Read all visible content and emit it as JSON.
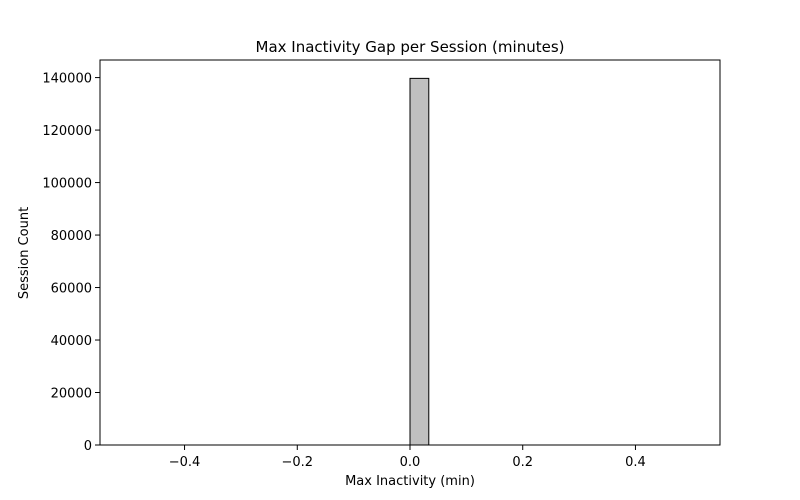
{
  "chart_data": {
    "type": "bar",
    "title": "Max Inactivity Gap per Session (minutes)",
    "xlabel": "Max Inactivity (min)",
    "ylabel": "Session Count",
    "xlim": [
      -0.55,
      0.55
    ],
    "ylim": [
      0,
      146700
    ],
    "x_ticks": [
      -0.4,
      -0.2,
      0.0,
      0.2,
      0.4
    ],
    "x_tick_labels": [
      "−0.4",
      "−0.2",
      "0.0",
      "0.2",
      "0.4"
    ],
    "y_ticks": [
      0,
      20000,
      40000,
      60000,
      80000,
      100000,
      120000,
      140000
    ],
    "y_tick_labels": [
      "0",
      "20000",
      "40000",
      "60000",
      "80000",
      "100000",
      "120000",
      "140000"
    ],
    "bins": {
      "start": -0.5,
      "end": 0.5,
      "count": 30
    },
    "values": [
      0,
      0,
      0,
      0,
      0,
      0,
      0,
      0,
      0,
      0,
      0,
      0,
      0,
      0,
      0,
      139700,
      0,
      0,
      0,
      0,
      0,
      0,
      0,
      0,
      0,
      0,
      0,
      0,
      0,
      0
    ],
    "bar_fill": "#c0c0c0",
    "bar_edge": "#000000",
    "grid": false,
    "legend": "none"
  }
}
